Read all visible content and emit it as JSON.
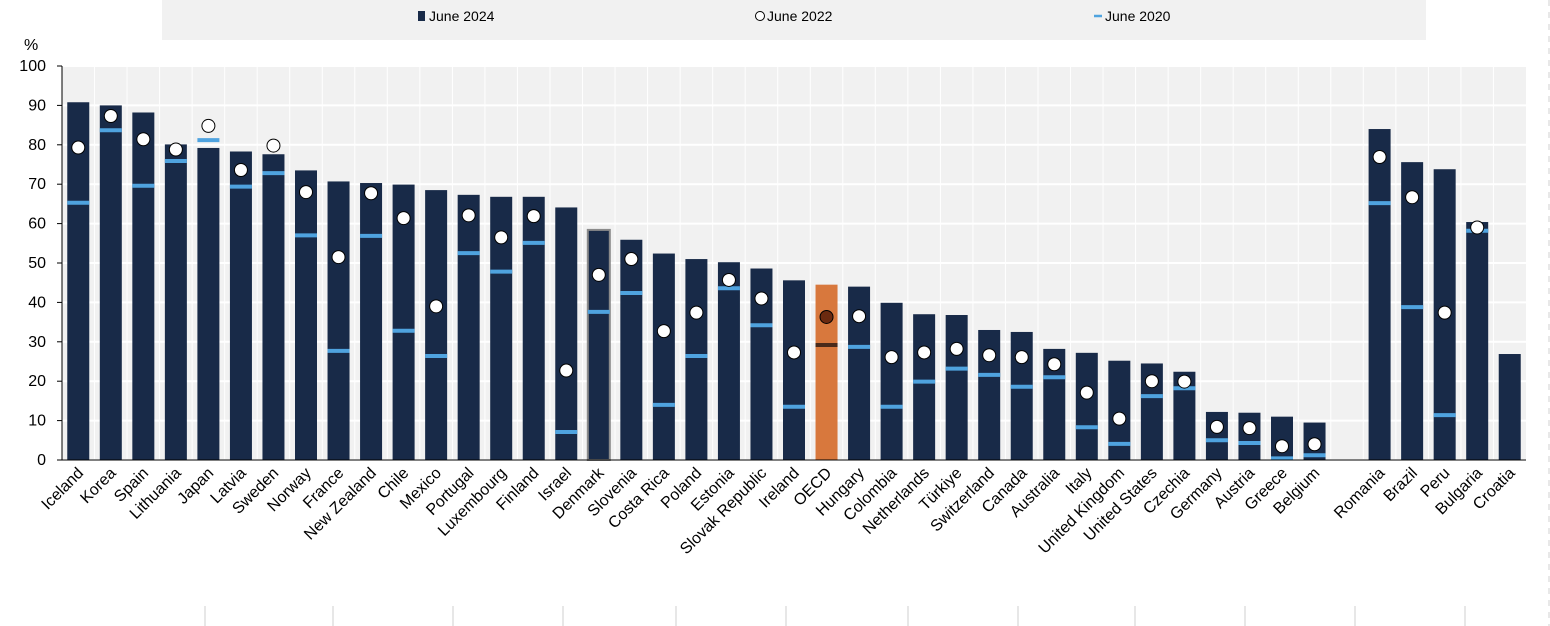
{
  "chart_data": {
    "type": "bar",
    "ylabel": "%",
    "ylim": [
      0,
      100
    ],
    "yticks": [
      0,
      10,
      20,
      30,
      40,
      50,
      60,
      70,
      80,
      90,
      100
    ],
    "grid": true,
    "legend_position": "top",
    "colors": {
      "bar": "#182a48",
      "oecd_bar": "#d8783d",
      "june_2020_marker": "#4fa3df",
      "oecd_2020_marker": "#4a2a1a",
      "oecd_2022_marker": "#6b2a10",
      "plot_background": "#f1f1f1"
    },
    "categories": [
      "Iceland",
      "Korea",
      "Spain",
      "Lithuania",
      "Japan",
      "Latvia",
      "Sweden",
      "Norway",
      "France",
      "New Zealand",
      "Chile",
      "Mexico",
      "Portugal",
      "Luxembourg",
      "Finland",
      "Israel",
      "Denmark",
      "Slovenia",
      "Costa Rica",
      "Poland",
      "Estonia",
      "Slovak Republic",
      "Ireland",
      "OECD",
      "Hungary",
      "Colombia",
      "Netherlands",
      "Türkiye",
      "Switzerland",
      "Canada",
      "Australia",
      "Italy",
      "United Kingdom",
      "United States",
      "Czechia",
      "Germany",
      "Austria",
      "Greece",
      "Belgium",
      "",
      "Romania",
      "Brazil",
      "Peru",
      "Bulgaria",
      "Croatia"
    ],
    "highlight": {
      "OECD": "oecd",
      "Denmark": "outline"
    },
    "series": [
      {
        "name": "June 2024",
        "marker": "bar",
        "values": [
          90.8,
          90,
          88.2,
          80.1,
          79.2,
          78.3,
          77.6,
          73.5,
          70.7,
          70.3,
          69.9,
          68.5,
          67.3,
          66.8,
          66.8,
          64.1,
          58.4,
          55.9,
          52.4,
          51,
          50.2,
          48.6,
          45.6,
          44.5,
          44,
          39.9,
          37,
          36.8,
          33,
          32.5,
          28.2,
          27.2,
          25.2,
          24.5,
          22.4,
          12.2,
          12,
          11,
          9.5,
          null,
          84,
          75.6,
          73.8,
          60.4,
          26.9
        ]
      },
      {
        "name": "June 2022",
        "marker": "circle",
        "values": [
          79.3,
          87.3,
          81.4,
          78.8,
          84.8,
          73.6,
          79.8,
          68,
          51.5,
          67.7,
          61.4,
          39,
          62.1,
          56.5,
          61.9,
          22.7,
          47,
          51,
          32.7,
          37.4,
          45.7,
          41,
          27.3,
          36.3,
          36.5,
          26.1,
          27.3,
          28.2,
          26.6,
          26.1,
          24.3,
          17.1,
          10.5,
          20,
          19.9,
          8.4,
          8.1,
          3.5,
          4,
          null,
          76.9,
          66.7,
          37.4,
          59,
          null
        ]
      },
      {
        "name": "June 2020",
        "marker": "dash",
        "values": [
          65.3,
          83.7,
          69.6,
          75.9,
          81.2,
          69.4,
          72.8,
          57,
          27.7,
          56.9,
          32.8,
          26.4,
          52.5,
          47.8,
          55.1,
          7.1,
          37.6,
          42.4,
          14,
          26.4,
          43.6,
          34.2,
          13.5,
          29.2,
          28.7,
          13.5,
          19.9,
          23.2,
          21.6,
          18.6,
          21,
          8.3,
          4.1,
          16.2,
          18.2,
          5,
          4.3,
          0.4,
          1.2,
          null,
          65.2,
          38.8,
          11.4,
          58.2,
          null
        ]
      }
    ]
  }
}
